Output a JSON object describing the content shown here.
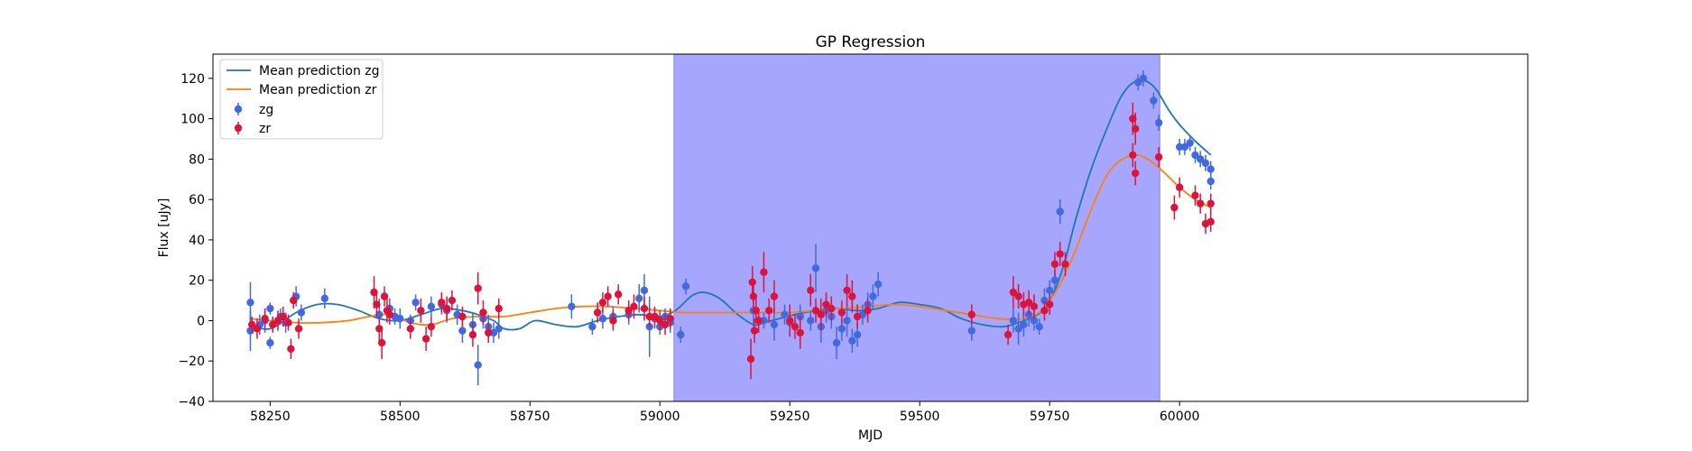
{
  "chart_data": {
    "type": "scatter",
    "title": "GP Regression",
    "xlabel": "MJD",
    "ylabel": "Flux [uJy]",
    "xlim": [
      58140,
      60670
    ],
    "ylim": [
      -40,
      132
    ],
    "xticks": [
      58250,
      58500,
      58750,
      59000,
      59250,
      59500,
      59750,
      60000
    ],
    "yticks": [
      -40,
      -20,
      0,
      20,
      40,
      60,
      80,
      100,
      120
    ],
    "legend_position": "upper-left",
    "shaded_region": {
      "x0": 59027,
      "x1": 59962,
      "color": "#a6a6ff"
    },
    "lines": [
      {
        "name": "Mean prediction zg",
        "color": "#1f77b4",
        "x": [
          58210,
          58250,
          58300,
          58340,
          58380,
          58420,
          58460,
          58500,
          58540,
          58580,
          58620,
          58650,
          58680,
          58700,
          58730,
          58760,
          58800,
          58840,
          58880,
          58920,
          58960,
          59000,
          59030,
          59060,
          59080,
          59100,
          59120,
          59150,
          59180,
          59200,
          59230,
          59260,
          59300,
          59340,
          59380,
          59420,
          59460,
          59500,
          59540,
          59580,
          59620,
          59660,
          59690,
          59720,
          59740,
          59760,
          59780,
          59800,
          59830,
          59860,
          59890,
          59920,
          59950,
          59980,
          60000,
          60030,
          60060
        ],
        "y": [
          -2,
          -4,
          4,
          8,
          8,
          5,
          1,
          0,
          3,
          6,
          5,
          3,
          0,
          -4,
          -4,
          0,
          -2,
          -3,
          0,
          2,
          3,
          2,
          5,
          12,
          14,
          13,
          10,
          3,
          -2,
          -1,
          1,
          3,
          5,
          6,
          5,
          6,
          9,
          8,
          6,
          1,
          -2,
          -3,
          -1,
          2,
          6,
          15,
          30,
          50,
          75,
          95,
          112,
          119,
          116,
          104,
          97,
          89,
          82
        ]
      },
      {
        "name": "Mean prediction zr",
        "color": "#ff7f0e",
        "x": [
          58210,
          58250,
          58300,
          58350,
          58400,
          58440,
          58480,
          58520,
          58560,
          58600,
          58650,
          58700,
          58750,
          58800,
          58850,
          58900,
          58950,
          59000,
          59050,
          59100,
          59150,
          59200,
          59250,
          59300,
          59350,
          59400,
          59450,
          59500,
          59550,
          59600,
          59650,
          59700,
          59730,
          59750,
          59770,
          59800,
          59830,
          59860,
          59890,
          59920,
          59950,
          59980,
          60000,
          60030,
          60060
        ],
        "y": [
          1,
          0,
          -1,
          -1,
          0,
          2,
          3,
          -1,
          -2,
          1,
          2,
          2,
          4,
          6,
          7,
          7,
          6,
          5,
          4,
          4,
          4,
          4,
          4,
          5,
          6,
          7,
          8,
          7,
          5,
          3,
          1,
          1,
          4,
          10,
          18,
          35,
          55,
          72,
          80,
          82,
          78,
          71,
          66,
          60,
          56
        ]
      }
    ],
    "series": [
      {
        "name": "zg",
        "color": "#4169e1",
        "points": [
          [
            58212,
            9,
            10
          ],
          [
            58212,
            -5,
            10
          ],
          [
            58230,
            -2,
            5
          ],
          [
            58240,
            0,
            6
          ],
          [
            58250,
            6,
            3
          ],
          [
            58250,
            -11,
            3
          ],
          [
            58270,
            2,
            4
          ],
          [
            58280,
            -1,
            5
          ],
          [
            58300,
            12,
            5
          ],
          [
            58310,
            4,
            4
          ],
          [
            58355,
            11,
            5
          ],
          [
            58460,
            3,
            8
          ],
          [
            58480,
            6,
            5
          ],
          [
            58490,
            2,
            4
          ],
          [
            58500,
            1,
            5
          ],
          [
            58520,
            0,
            3
          ],
          [
            58530,
            9,
            4
          ],
          [
            58560,
            7,
            5
          ],
          [
            58580,
            8,
            5
          ],
          [
            58590,
            5,
            6
          ],
          [
            58610,
            3,
            5
          ],
          [
            58620,
            -5,
            6
          ],
          [
            58640,
            -2,
            6
          ],
          [
            58650,
            -22,
            10
          ],
          [
            58660,
            1,
            5
          ],
          [
            58670,
            -3,
            6
          ],
          [
            58680,
            -6,
            5
          ],
          [
            58690,
            -4,
            5
          ],
          [
            58830,
            7,
            6
          ],
          [
            58870,
            -3,
            4
          ],
          [
            58890,
            1,
            5
          ],
          [
            58910,
            2,
            5
          ],
          [
            58940,
            3,
            5
          ],
          [
            58960,
            11,
            7
          ],
          [
            58970,
            15,
            8
          ],
          [
            58980,
            -3,
            15
          ],
          [
            58990,
            1,
            5
          ],
          [
            59000,
            -3,
            4
          ],
          [
            59010,
            2,
            4
          ],
          [
            59020,
            -1,
            5
          ],
          [
            59040,
            -7,
            4
          ],
          [
            59050,
            17,
            4
          ],
          [
            59180,
            5,
            8
          ],
          [
            59200,
            0,
            4
          ],
          [
            59220,
            -2,
            8
          ],
          [
            59240,
            3,
            5
          ],
          [
            59250,
            -1,
            6
          ],
          [
            59270,
            2,
            6
          ],
          [
            59290,
            0,
            5
          ],
          [
            59300,
            26,
            12
          ],
          [
            59310,
            -3,
            8
          ],
          [
            59320,
            5,
            6
          ],
          [
            59330,
            2,
            6
          ],
          [
            59340,
            -11,
            8
          ],
          [
            59350,
            -4,
            6
          ],
          [
            59360,
            0,
            8
          ],
          [
            59370,
            -10,
            6
          ],
          [
            59380,
            -7,
            6
          ],
          [
            59390,
            3,
            5
          ],
          [
            59400,
            8,
            6
          ],
          [
            59410,
            12,
            6
          ],
          [
            59420,
            18,
            6
          ],
          [
            59600,
            -5,
            5
          ],
          [
            59680,
            0,
            6
          ],
          [
            59690,
            -4,
            8
          ],
          [
            59700,
            -2,
            6
          ],
          [
            59710,
            3,
            6
          ],
          [
            59720,
            0,
            5
          ],
          [
            59730,
            -3,
            4
          ],
          [
            59740,
            10,
            6
          ],
          [
            59750,
            15,
            5
          ],
          [
            59760,
            20,
            5
          ],
          [
            59770,
            54,
            6
          ],
          [
            59920,
            118,
            4
          ],
          [
            59930,
            120,
            4
          ],
          [
            59950,
            109,
            4
          ],
          [
            59960,
            98,
            4
          ],
          [
            60000,
            86,
            4
          ],
          [
            60010,
            86,
            4
          ],
          [
            60020,
            88,
            4
          ],
          [
            60030,
            82,
            4
          ],
          [
            60040,
            80,
            4
          ],
          [
            60050,
            78,
            4
          ],
          [
            60060,
            75,
            4
          ],
          [
            60060,
            69,
            4
          ]
        ]
      },
      {
        "name": "zr",
        "color": "#dc143c",
        "points": [
          [
            58215,
            -2,
            4
          ],
          [
            58225,
            -4,
            5
          ],
          [
            58240,
            1,
            5
          ],
          [
            58255,
            -2,
            4
          ],
          [
            58265,
            0,
            5
          ],
          [
            58275,
            2,
            5
          ],
          [
            58285,
            -1,
            4
          ],
          [
            58290,
            -14,
            5
          ],
          [
            58295,
            10,
            4
          ],
          [
            58305,
            -4,
            5
          ],
          [
            58450,
            14,
            8
          ],
          [
            58455,
            8,
            6
          ],
          [
            58460,
            -4,
            6
          ],
          [
            58465,
            -11,
            8
          ],
          [
            58470,
            12,
            5
          ],
          [
            58475,
            5,
            6
          ],
          [
            58480,
            3,
            5
          ],
          [
            58520,
            -4,
            5
          ],
          [
            58540,
            5,
            6
          ],
          [
            58550,
            -9,
            6
          ],
          [
            58560,
            -3,
            5
          ],
          [
            58580,
            9,
            5
          ],
          [
            58590,
            6,
            6
          ],
          [
            58600,
            10,
            5
          ],
          [
            58620,
            2,
            5
          ],
          [
            58640,
            -7,
            6
          ],
          [
            58650,
            16,
            8
          ],
          [
            58660,
            4,
            6
          ],
          [
            58670,
            -6,
            5
          ],
          [
            58690,
            6,
            5
          ],
          [
            58880,
            4,
            5
          ],
          [
            58890,
            9,
            5
          ],
          [
            58900,
            12,
            5
          ],
          [
            58910,
            0,
            5
          ],
          [
            58920,
            13,
            5
          ],
          [
            58940,
            5,
            5
          ],
          [
            58950,
            7,
            6
          ],
          [
            58970,
            6,
            6
          ],
          [
            58980,
            2,
            5
          ],
          [
            58990,
            2,
            5
          ],
          [
            59000,
            0,
            5
          ],
          [
            59010,
            -2,
            5
          ],
          [
            59020,
            1,
            5
          ],
          [
            59175,
            -19,
            10
          ],
          [
            59178,
            19,
            8
          ],
          [
            59180,
            12,
            8
          ],
          [
            59182,
            -5,
            6
          ],
          [
            59185,
            5,
            6
          ],
          [
            59190,
            0,
            6
          ],
          [
            59200,
            24,
            10
          ],
          [
            59210,
            5,
            6
          ],
          [
            59220,
            12,
            8
          ],
          [
            59250,
            0,
            8
          ],
          [
            59260,
            -3,
            6
          ],
          [
            59270,
            -6,
            8
          ],
          [
            59290,
            15,
            8
          ],
          [
            59300,
            5,
            6
          ],
          [
            59310,
            3,
            8
          ],
          [
            59320,
            8,
            6
          ],
          [
            59330,
            6,
            6
          ],
          [
            59350,
            4,
            6
          ],
          [
            59360,
            15,
            8
          ],
          [
            59370,
            12,
            8
          ],
          [
            59380,
            2,
            6
          ],
          [
            59400,
            5,
            6
          ],
          [
            59600,
            3,
            5
          ],
          [
            59670,
            -7,
            5
          ],
          [
            59680,
            14,
            8
          ],
          [
            59690,
            12,
            6
          ],
          [
            59700,
            8,
            6
          ],
          [
            59710,
            9,
            6
          ],
          [
            59720,
            7,
            6
          ],
          [
            59740,
            5,
            5
          ],
          [
            59750,
            8,
            5
          ],
          [
            59760,
            28,
            6
          ],
          [
            59770,
            33,
            6
          ],
          [
            59780,
            28,
            6
          ],
          [
            59910,
            100,
            8
          ],
          [
            59910,
            82,
            6
          ],
          [
            59915,
            95,
            8
          ],
          [
            59915,
            73,
            6
          ],
          [
            59960,
            81,
            5
          ],
          [
            59990,
            56,
            6
          ],
          [
            60000,
            66,
            5
          ],
          [
            60030,
            62,
            5
          ],
          [
            60040,
            58,
            5
          ],
          [
            60050,
            48,
            5
          ],
          [
            60060,
            58,
            5
          ],
          [
            60060,
            49,
            5
          ]
        ]
      }
    ]
  }
}
